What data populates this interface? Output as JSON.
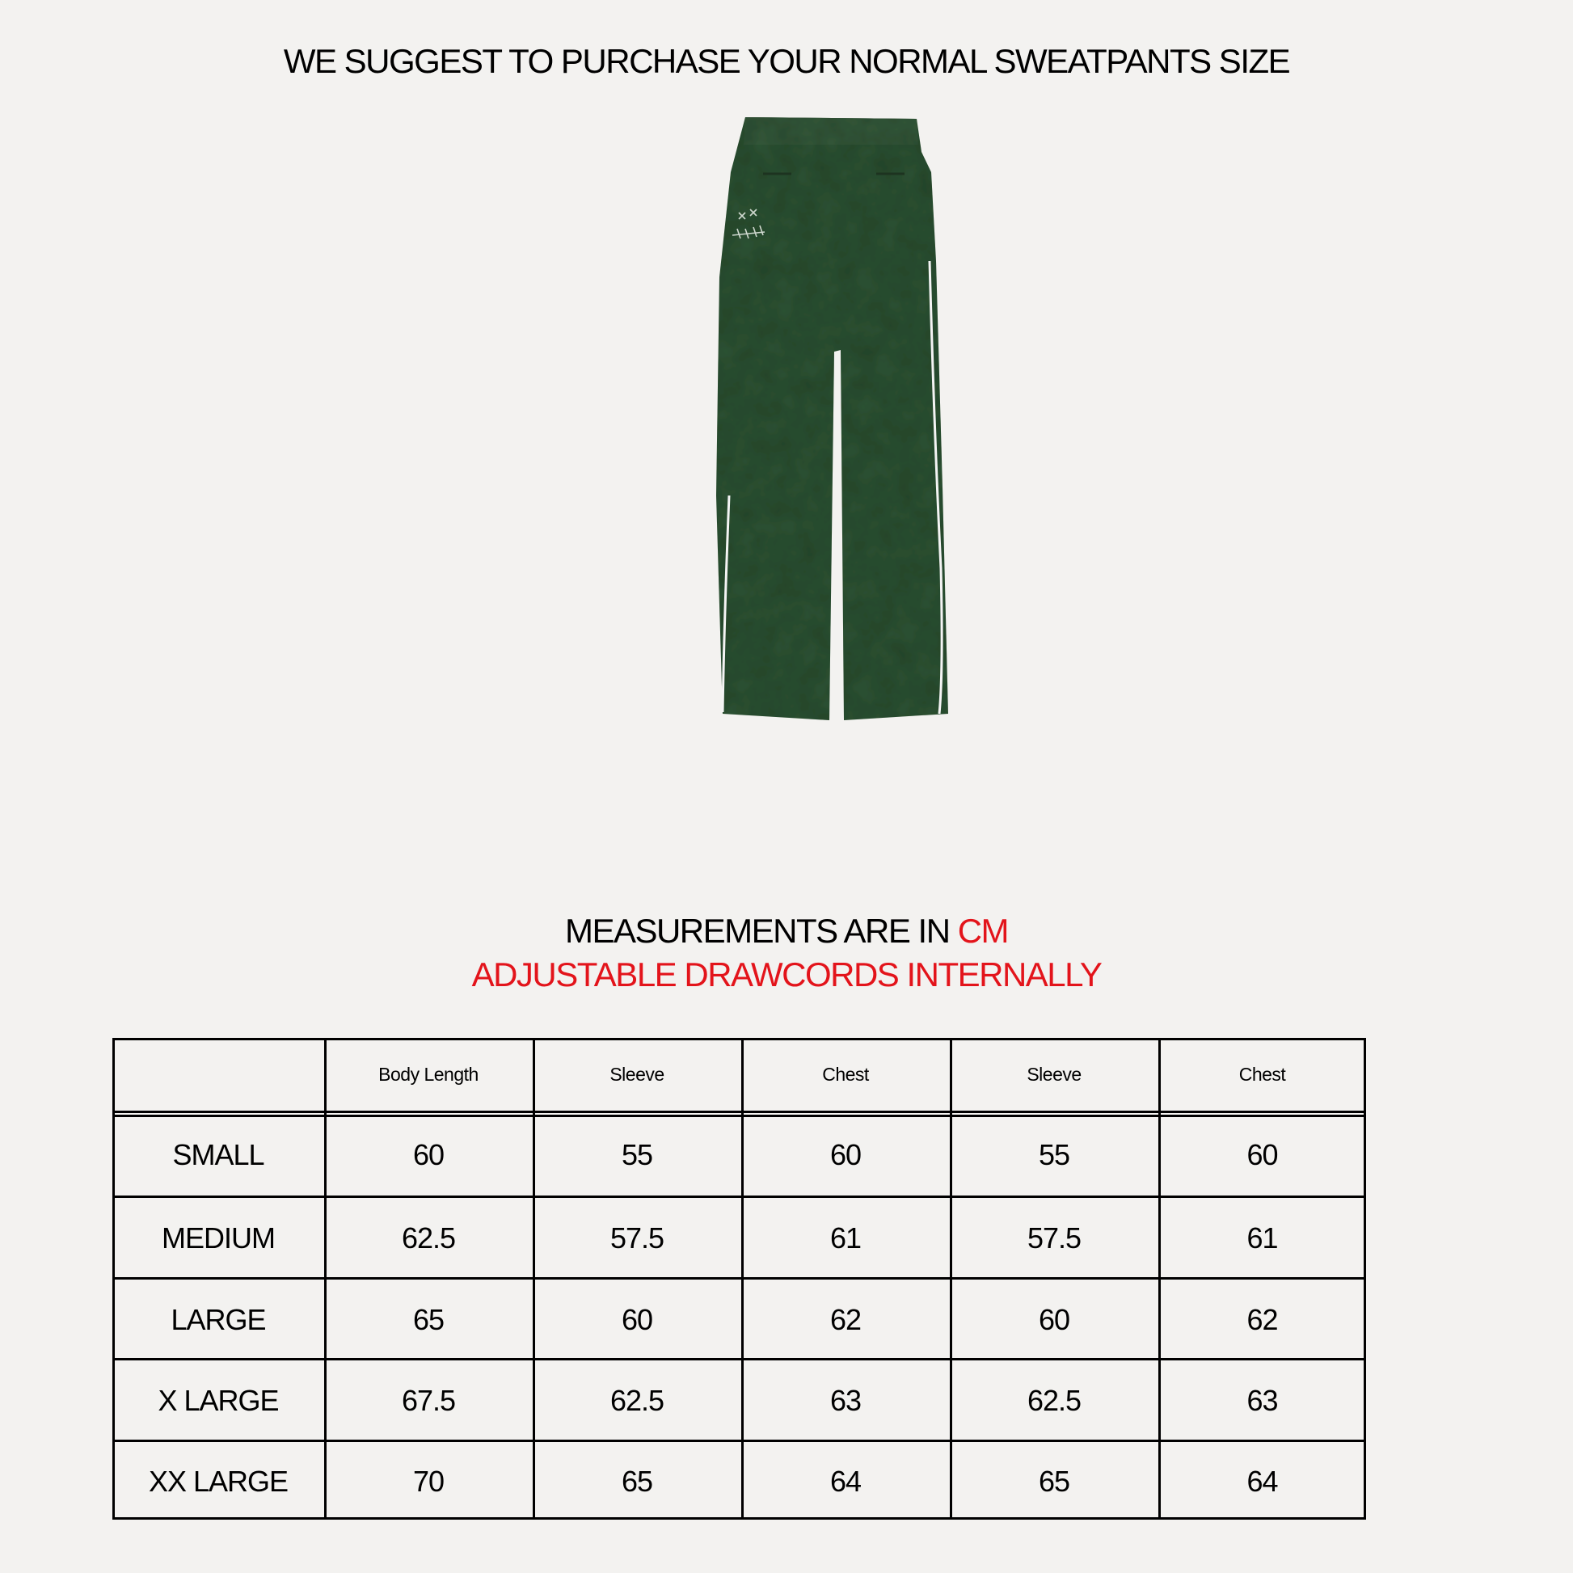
{
  "title": "WE SUGGEST TO PURCHASE YOUR NORMAL SWEATPANTS SIZE",
  "product_image": {
    "alt": "green velour sweatpants back view",
    "color": "#2f5234",
    "piping_color": "#ffffff"
  },
  "notes": {
    "measurements_prefix": "MEASUREMENTS ARE IN ",
    "measurements_unit": "CM",
    "drawcords": "ADJUSTABLE DRAWCORDS INTERNALLY",
    "accent_color": "#e3141b"
  },
  "size_table": {
    "headers": [
      "",
      "Body Length",
      "Sleeve",
      "Chest",
      "Sleeve",
      "Chest"
    ],
    "rows": [
      {
        "size": "SMALL",
        "values": [
          "60",
          "55",
          "60",
          "55",
          "60"
        ]
      },
      {
        "size": "MEDIUM",
        "values": [
          "62.5",
          "57.5",
          "61",
          "57.5",
          "61"
        ]
      },
      {
        "size": "LARGE",
        "values": [
          "65",
          "60",
          "62",
          "60",
          "62"
        ]
      },
      {
        "size": "X LARGE",
        "values": [
          "67.5",
          "62.5",
          "63",
          "62.5",
          "63"
        ]
      },
      {
        "size": "XX LARGE",
        "values": [
          "70",
          "65",
          "64",
          "65",
          "64"
        ]
      }
    ]
  }
}
